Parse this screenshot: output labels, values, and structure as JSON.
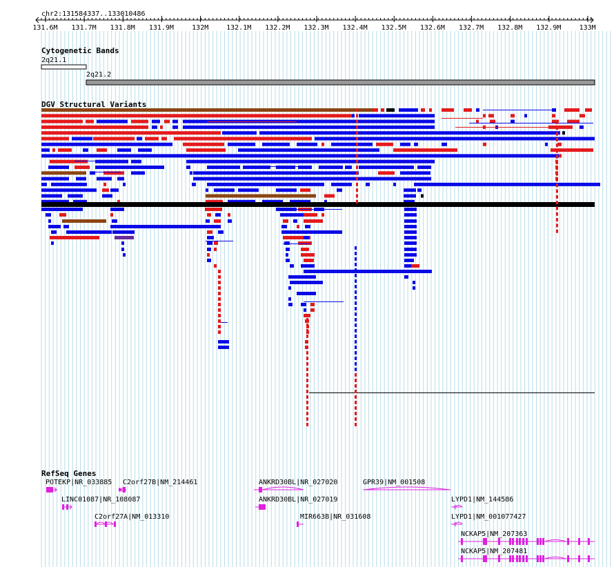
{
  "locus": {
    "text": "chr2:131584337..133010486"
  },
  "ruler": {
    "ticks": [
      "131.6M",
      "131.7M",
      "131.8M",
      "131.9M",
      "132M",
      "132.1M",
      "132.2M",
      "132.3M",
      "132.4M",
      "132.5M",
      "132.6M",
      "132.7M",
      "132.8M",
      "132.9M",
      "133M"
    ]
  },
  "tracks": {
    "cytobands": {
      "title": "Cytogenetic Bands",
      "bands": [
        {
          "name": "2q21.1",
          "stain": "gneg"
        },
        {
          "name": "2q21.2",
          "stain": "gpos"
        }
      ]
    },
    "dgv": {
      "title": "DGV Structural Variants",
      "legend_colors": {
        "gain": "#e41a1c",
        "loss": "#0000e6",
        "gain_loss": "#8b4513",
        "inversion": "#7b2fa5",
        "other": "#000000"
      }
    },
    "refseq": {
      "title": "RefSeq Genes",
      "color": "#e020e0",
      "genes": [
        {
          "label": "POTEKP|NR_033885"
        },
        {
          "label": "C2orf27B|NM_214461"
        },
        {
          "label": "LINC01087|NR_108087"
        },
        {
          "label": "C2orf27A|NM_013310"
        },
        {
          "label": "ANKRD30BL|NR_027020"
        },
        {
          "label": "ANKRD30BL|NR_027019"
        },
        {
          "label": "MIR663B|NR_031608"
        },
        {
          "label": "GPR39|NM_001508"
        },
        {
          "label": "LYPD1|NM_144586"
        },
        {
          "label": "LYPD1|NM_001077427"
        },
        {
          "label": "NCKAP5|NM_207363"
        },
        {
          "label": "NCKAP5|NM_207481"
        }
      ]
    }
  }
}
